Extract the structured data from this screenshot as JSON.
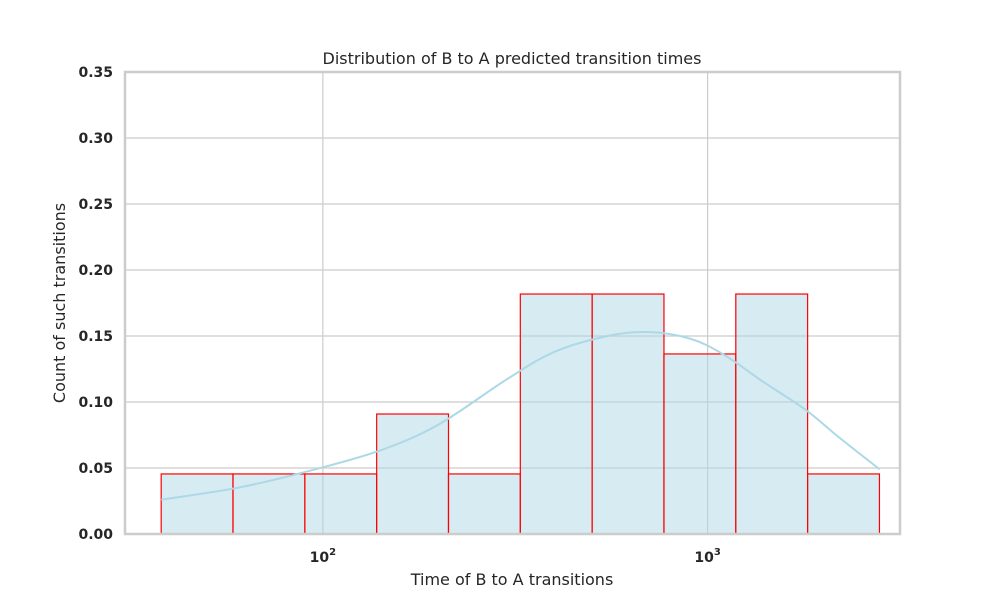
{
  "chart_data": {
    "type": "bar",
    "title": "Distribution of B to A predicted transition times",
    "xlabel": "Time of B to A transitions",
    "ylabel": "Count of such transitions",
    "xscale": "log",
    "xlim": [
      30.6,
      3163
    ],
    "ylim": [
      0,
      0.35
    ],
    "yticks": [
      0,
      0.05,
      0.1,
      0.15,
      0.2,
      0.25,
      0.3,
      0.35
    ],
    "ytick_labels": [
      "0.00",
      "0.05",
      "0.10",
      "0.15",
      "0.20",
      "0.25",
      "0.30",
      "0.35"
    ],
    "xticks": [
      100,
      1000
    ],
    "xtick_labels": [
      {
        "base": "10",
        "exp": "2"
      },
      {
        "base": "10",
        "exp": "3"
      }
    ],
    "grid": true,
    "bar_fill": "#add8e6",
    "bar_edge": "#ff0000",
    "kde_color": "#add8e6",
    "bins": [
      {
        "x0": 38.0,
        "x1": 58.4,
        "value": 0.0455
      },
      {
        "x0": 58.4,
        "x1": 89.8,
        "value": 0.0455
      },
      {
        "x0": 89.8,
        "x1": 138.0,
        "value": 0.0455
      },
      {
        "x0": 138.0,
        "x1": 212.1,
        "value": 0.0909
      },
      {
        "x0": 212.1,
        "x1": 326.0,
        "value": 0.0455
      },
      {
        "x0": 326.0,
        "x1": 501.1,
        "value": 0.1818
      },
      {
        "x0": 501.1,
        "x1": 770.2,
        "value": 0.1818
      },
      {
        "x0": 770.2,
        "x1": 1183.9,
        "value": 0.1364
      },
      {
        "x0": 1183.9,
        "x1": 1819.7,
        "value": 0.1818
      },
      {
        "x0": 1819.7,
        "x1": 2797.0,
        "value": 0.0455
      }
    ],
    "kde": {
      "x": [
        38,
        60,
        90,
        140,
        200,
        300,
        400,
        550,
        700,
        900,
        1100,
        1400,
        1800,
        2200,
        2800
      ],
      "y": [
        0.026,
        0.035,
        0.047,
        0.063,
        0.083,
        0.117,
        0.138,
        0.15,
        0.153,
        0.148,
        0.136,
        0.115,
        0.094,
        0.073,
        0.049
      ]
    }
  }
}
